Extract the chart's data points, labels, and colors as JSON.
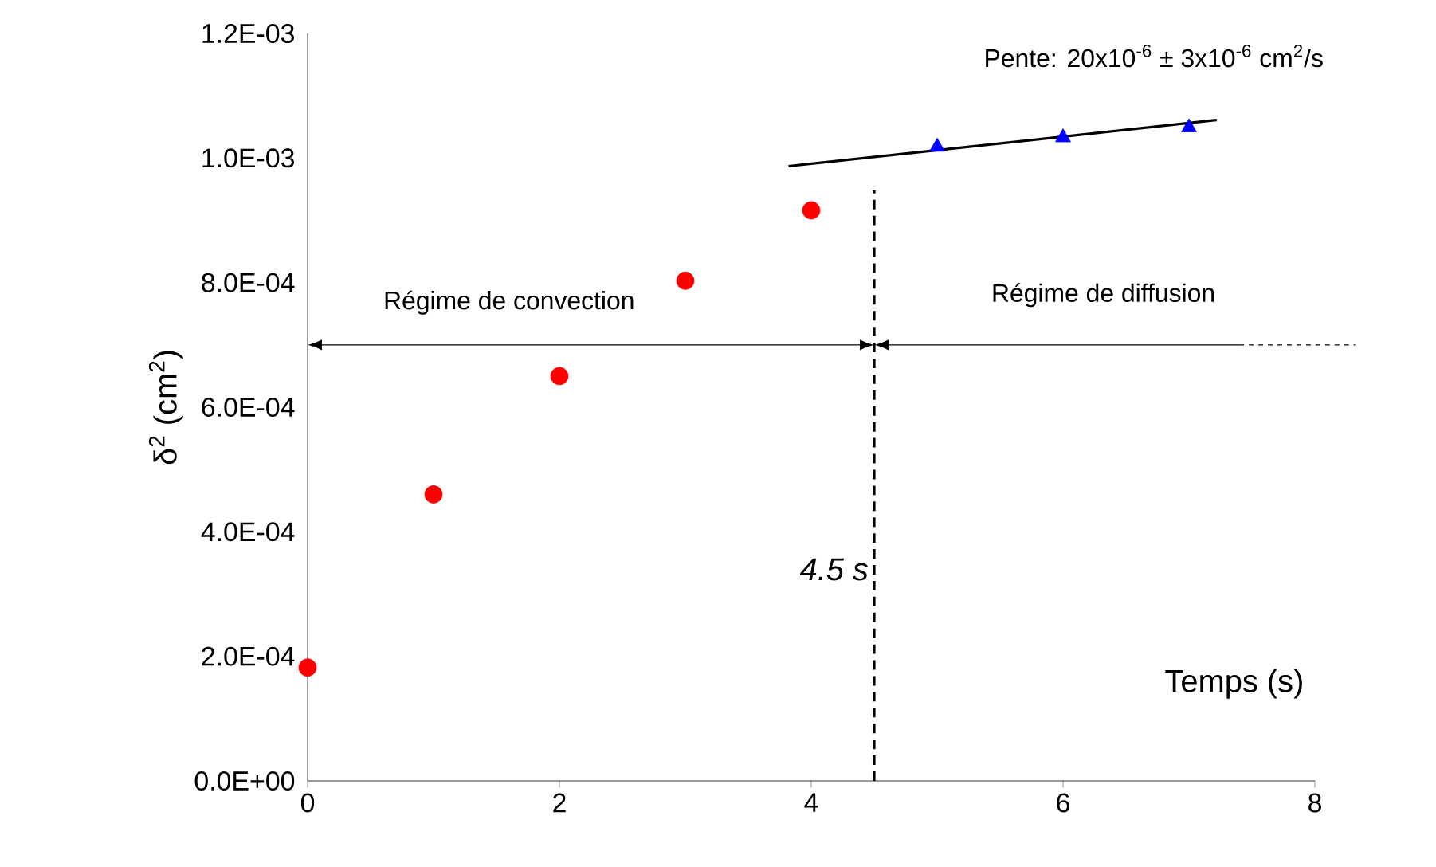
{
  "chart_data": {
    "type": "scatter",
    "xlabel": "Temps (s)",
    "ylabel": "δ$^{2}$ (cm$^{2}$)",
    "xlim": [
      0,
      8
    ],
    "xticks": [
      0,
      2,
      4,
      6,
      8
    ],
    "ylim": [
      0,
      0.0012
    ],
    "yticks": [
      {
        "value": 0,
        "label": "0.0E+00"
      },
      {
        "value": 0.0002,
        "label": "2.0E-04"
      },
      {
        "value": 0.0004,
        "label": "4.0E-04"
      },
      {
        "value": 0.0006,
        "label": "6.0E-04"
      },
      {
        "value": 0.0008,
        "label": "8.0E-04"
      },
      {
        "value": 0.001,
        "label": "1.0E-03"
      },
      {
        "value": 0.0012,
        "label": "1.2E-03"
      }
    ],
    "series": [
      {
        "color": "#ff0000",
        "marker": "circle",
        "x": [
          0,
          1,
          2,
          3,
          4
        ],
        "values": [
          0.000182,
          0.00046,
          0.00065,
          0.000803,
          0.000916
        ]
      },
      {
        "color": "#0000ff",
        "marker": "triangle",
        "x": [
          5,
          6,
          7
        ],
        "values": [
          0.001018,
          0.001033,
          0.001049
        ]
      },
      {
        "type": "line",
        "color": "#000000",
        "marker": "none",
        "x": [
          3.82,
          7.22
        ],
        "values": [
          0.000987,
          0.001061
        ]
      }
    ],
    "ref_lines": [
      {
        "axis": "x",
        "value": 4.5,
        "label": "4.5 s",
        "line_style": "dashed"
      },
      {
        "axis": "y",
        "value": 0.0007
      }
    ],
    "annotations": [
      "Régime de convection",
      "Régime de diffusion",
      "Pente:    20x10$^{-6}$ ± 3x10$^{-6}$ cm$^{2}$/s"
    ],
    "grid": false
  }
}
